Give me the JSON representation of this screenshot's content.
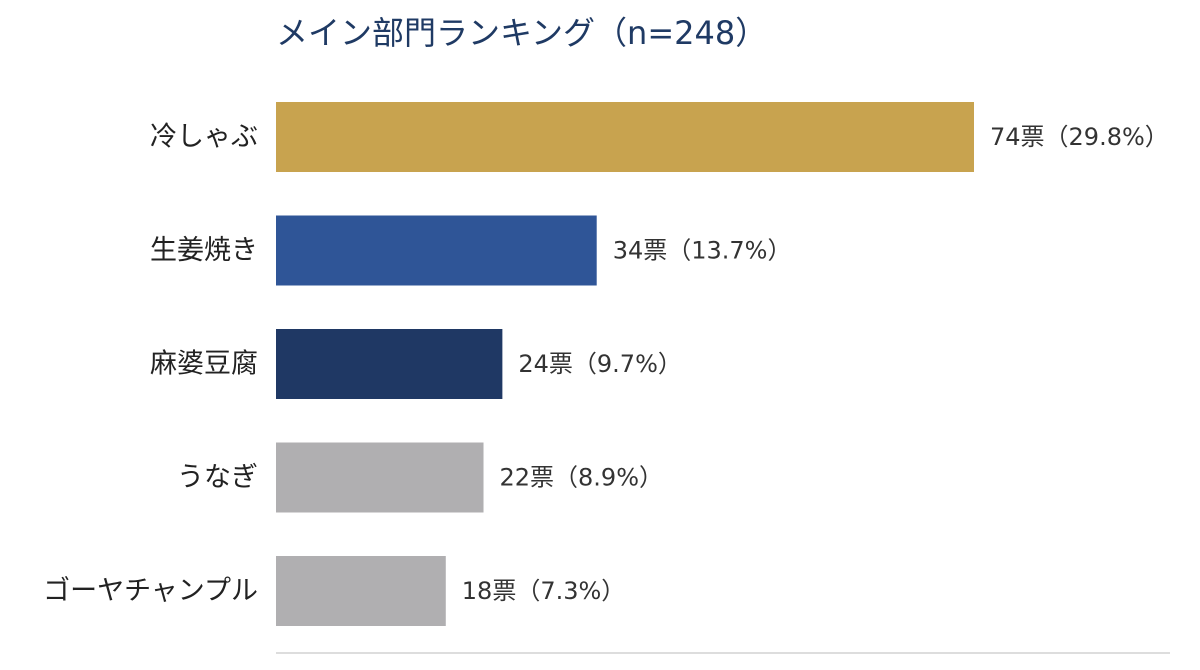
{
  "chart_data": {
    "type": "bar",
    "orientation": "horizontal",
    "title": "メイン部門ランキング（n=248）",
    "xlabel": "",
    "ylabel": "",
    "xlim": [
      0,
      74
    ],
    "grid": false,
    "categories": [
      "冷しゃぶ",
      "生姜焼き",
      "麻婆豆腐",
      "うなぎ",
      "ゴーヤチャンプル"
    ],
    "values": [
      74,
      34,
      24,
      22,
      18
    ],
    "labels": [
      "74票（29.8%）",
      "34票（13.7%）",
      "24票（9.7%）",
      "22票（8.9%）",
      "18票（7.3%）"
    ],
    "colors": [
      "#c8a34f",
      "#2f5597",
      "#1f3864",
      "#b0afb1",
      "#b0afb1"
    ]
  }
}
